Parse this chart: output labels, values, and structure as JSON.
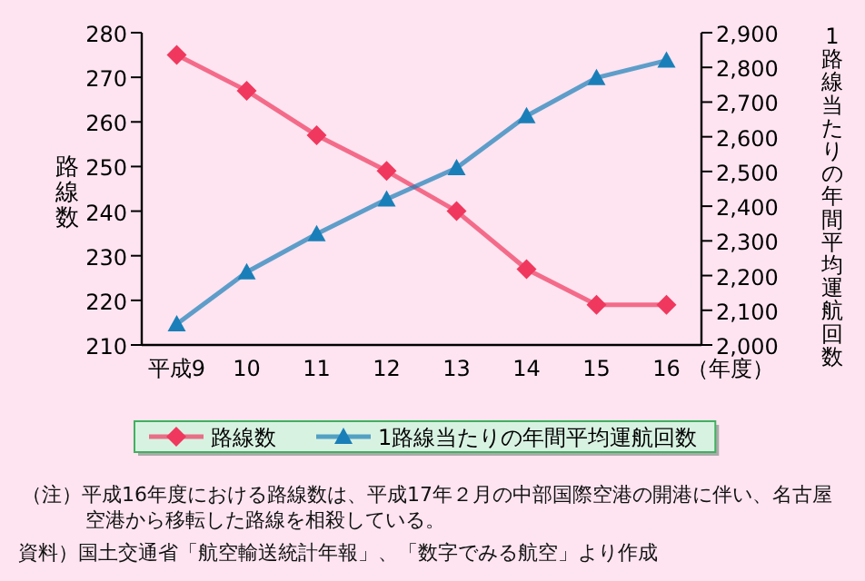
{
  "chart_data": {
    "type": "line",
    "categories": [
      "平成9",
      "10",
      "11",
      "12",
      "13",
      "14",
      "15",
      "16"
    ],
    "xlabel": "（年度）",
    "ylabel": "路線数",
    "y2label": "1路線当たりの年間平均運航回数",
    "series": [
      {
        "name": "路線数",
        "color": "#f0385e",
        "marker": "diamond",
        "values": [
          275,
          267,
          257,
          249,
          240,
          227,
          219,
          219
        ]
      },
      {
        "name": "1路線当たりの年間平均運航回数",
        "color": "#1a7fb8",
        "marker": "triangle",
        "axis": "y2",
        "values": [
          2060,
          2210,
          2320,
          2420,
          2510,
          2660,
          2770,
          2820
        ]
      }
    ],
    "ylim": [
      210,
      280
    ],
    "yticks": [
      210,
      220,
      230,
      240,
      250,
      260,
      270,
      280
    ],
    "y2lim": [
      2000,
      2900
    ],
    "y2ticks": [
      {
        "value": 2000,
        "label": "2,000"
      },
      {
        "value": 2100,
        "label": "2,100"
      },
      {
        "value": 2200,
        "label": "2,200"
      },
      {
        "value": 2300,
        "label": "2,300"
      },
      {
        "value": 2400,
        "label": "2,400"
      },
      {
        "value": 2500,
        "label": "2,500"
      },
      {
        "value": 2600,
        "label": "2,600"
      },
      {
        "value": 2700,
        "label": "2,700"
      },
      {
        "value": 2800,
        "label": "2,800"
      },
      {
        "value": 2900,
        "label": "2,900"
      }
    ],
    "grid": false,
    "legend": "bottom",
    "line_style": "solid",
    "annotations": [
      "（注）平成16年度における路線数は、平成17年２月の中部国際空港の開港に伴い、名古屋空港から移転した路線を相殺している。",
      "資料）国土交通省「航空輸送統計年報」、「数字でみる航空」より作成"
    ]
  }
}
